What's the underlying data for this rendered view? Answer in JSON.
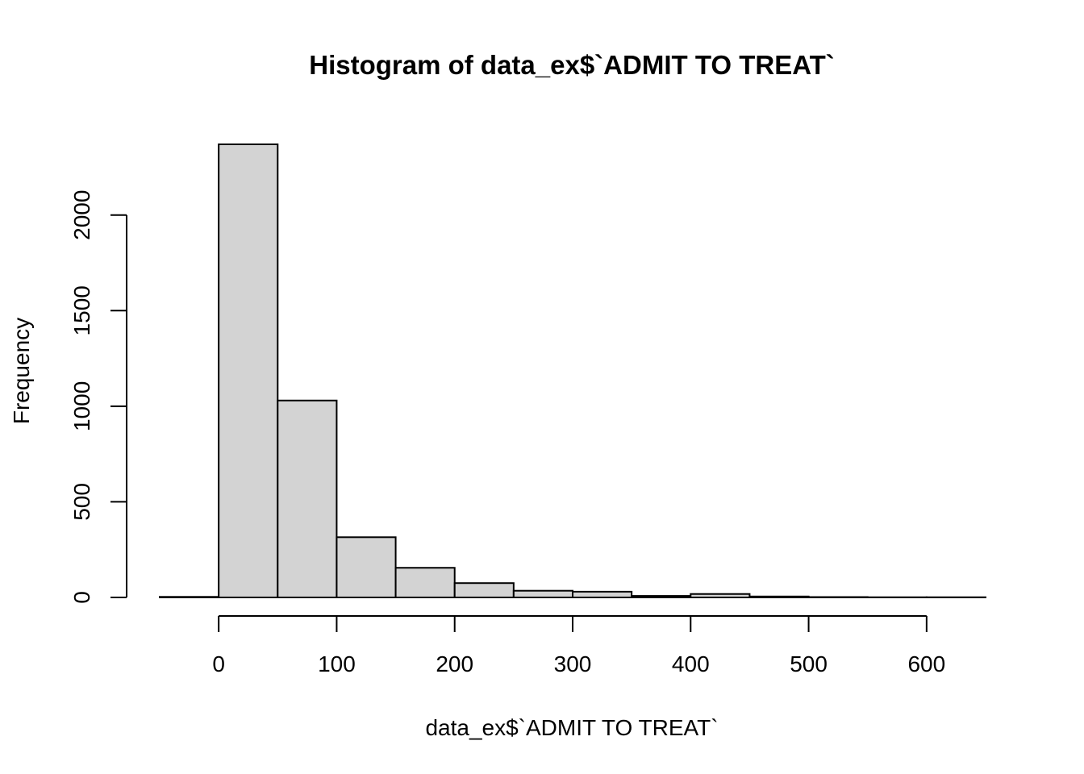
{
  "chart_data": {
    "type": "bar",
    "title": "Histogram of data_ex$`ADMIT TO TREAT`",
    "xlabel": "data_ex$`ADMIT TO TREAT`",
    "ylabel": "Frequency",
    "bin_edges": [
      -50,
      0,
      50,
      100,
      150,
      200,
      250,
      300,
      350,
      400,
      450,
      500,
      550,
      600,
      650
    ],
    "values": [
      3,
      2370,
      1030,
      315,
      155,
      75,
      35,
      30,
      8,
      18,
      5,
      2,
      1,
      1
    ],
    "x_ticks": [
      0,
      100,
      200,
      300,
      400,
      500,
      600
    ],
    "x_tick_labels": [
      "0",
      "100",
      "200",
      "300",
      "400",
      "500",
      "600"
    ],
    "y_ticks": [
      0,
      500,
      1000,
      1500,
      2000
    ],
    "y_tick_labels": [
      "0",
      "500",
      "1000",
      "1500",
      "2000"
    ],
    "xlim": [
      -50,
      650
    ],
    "ylim": [
      0,
      2370
    ],
    "bar_fill": "#d3d3d3",
    "grid": false
  }
}
